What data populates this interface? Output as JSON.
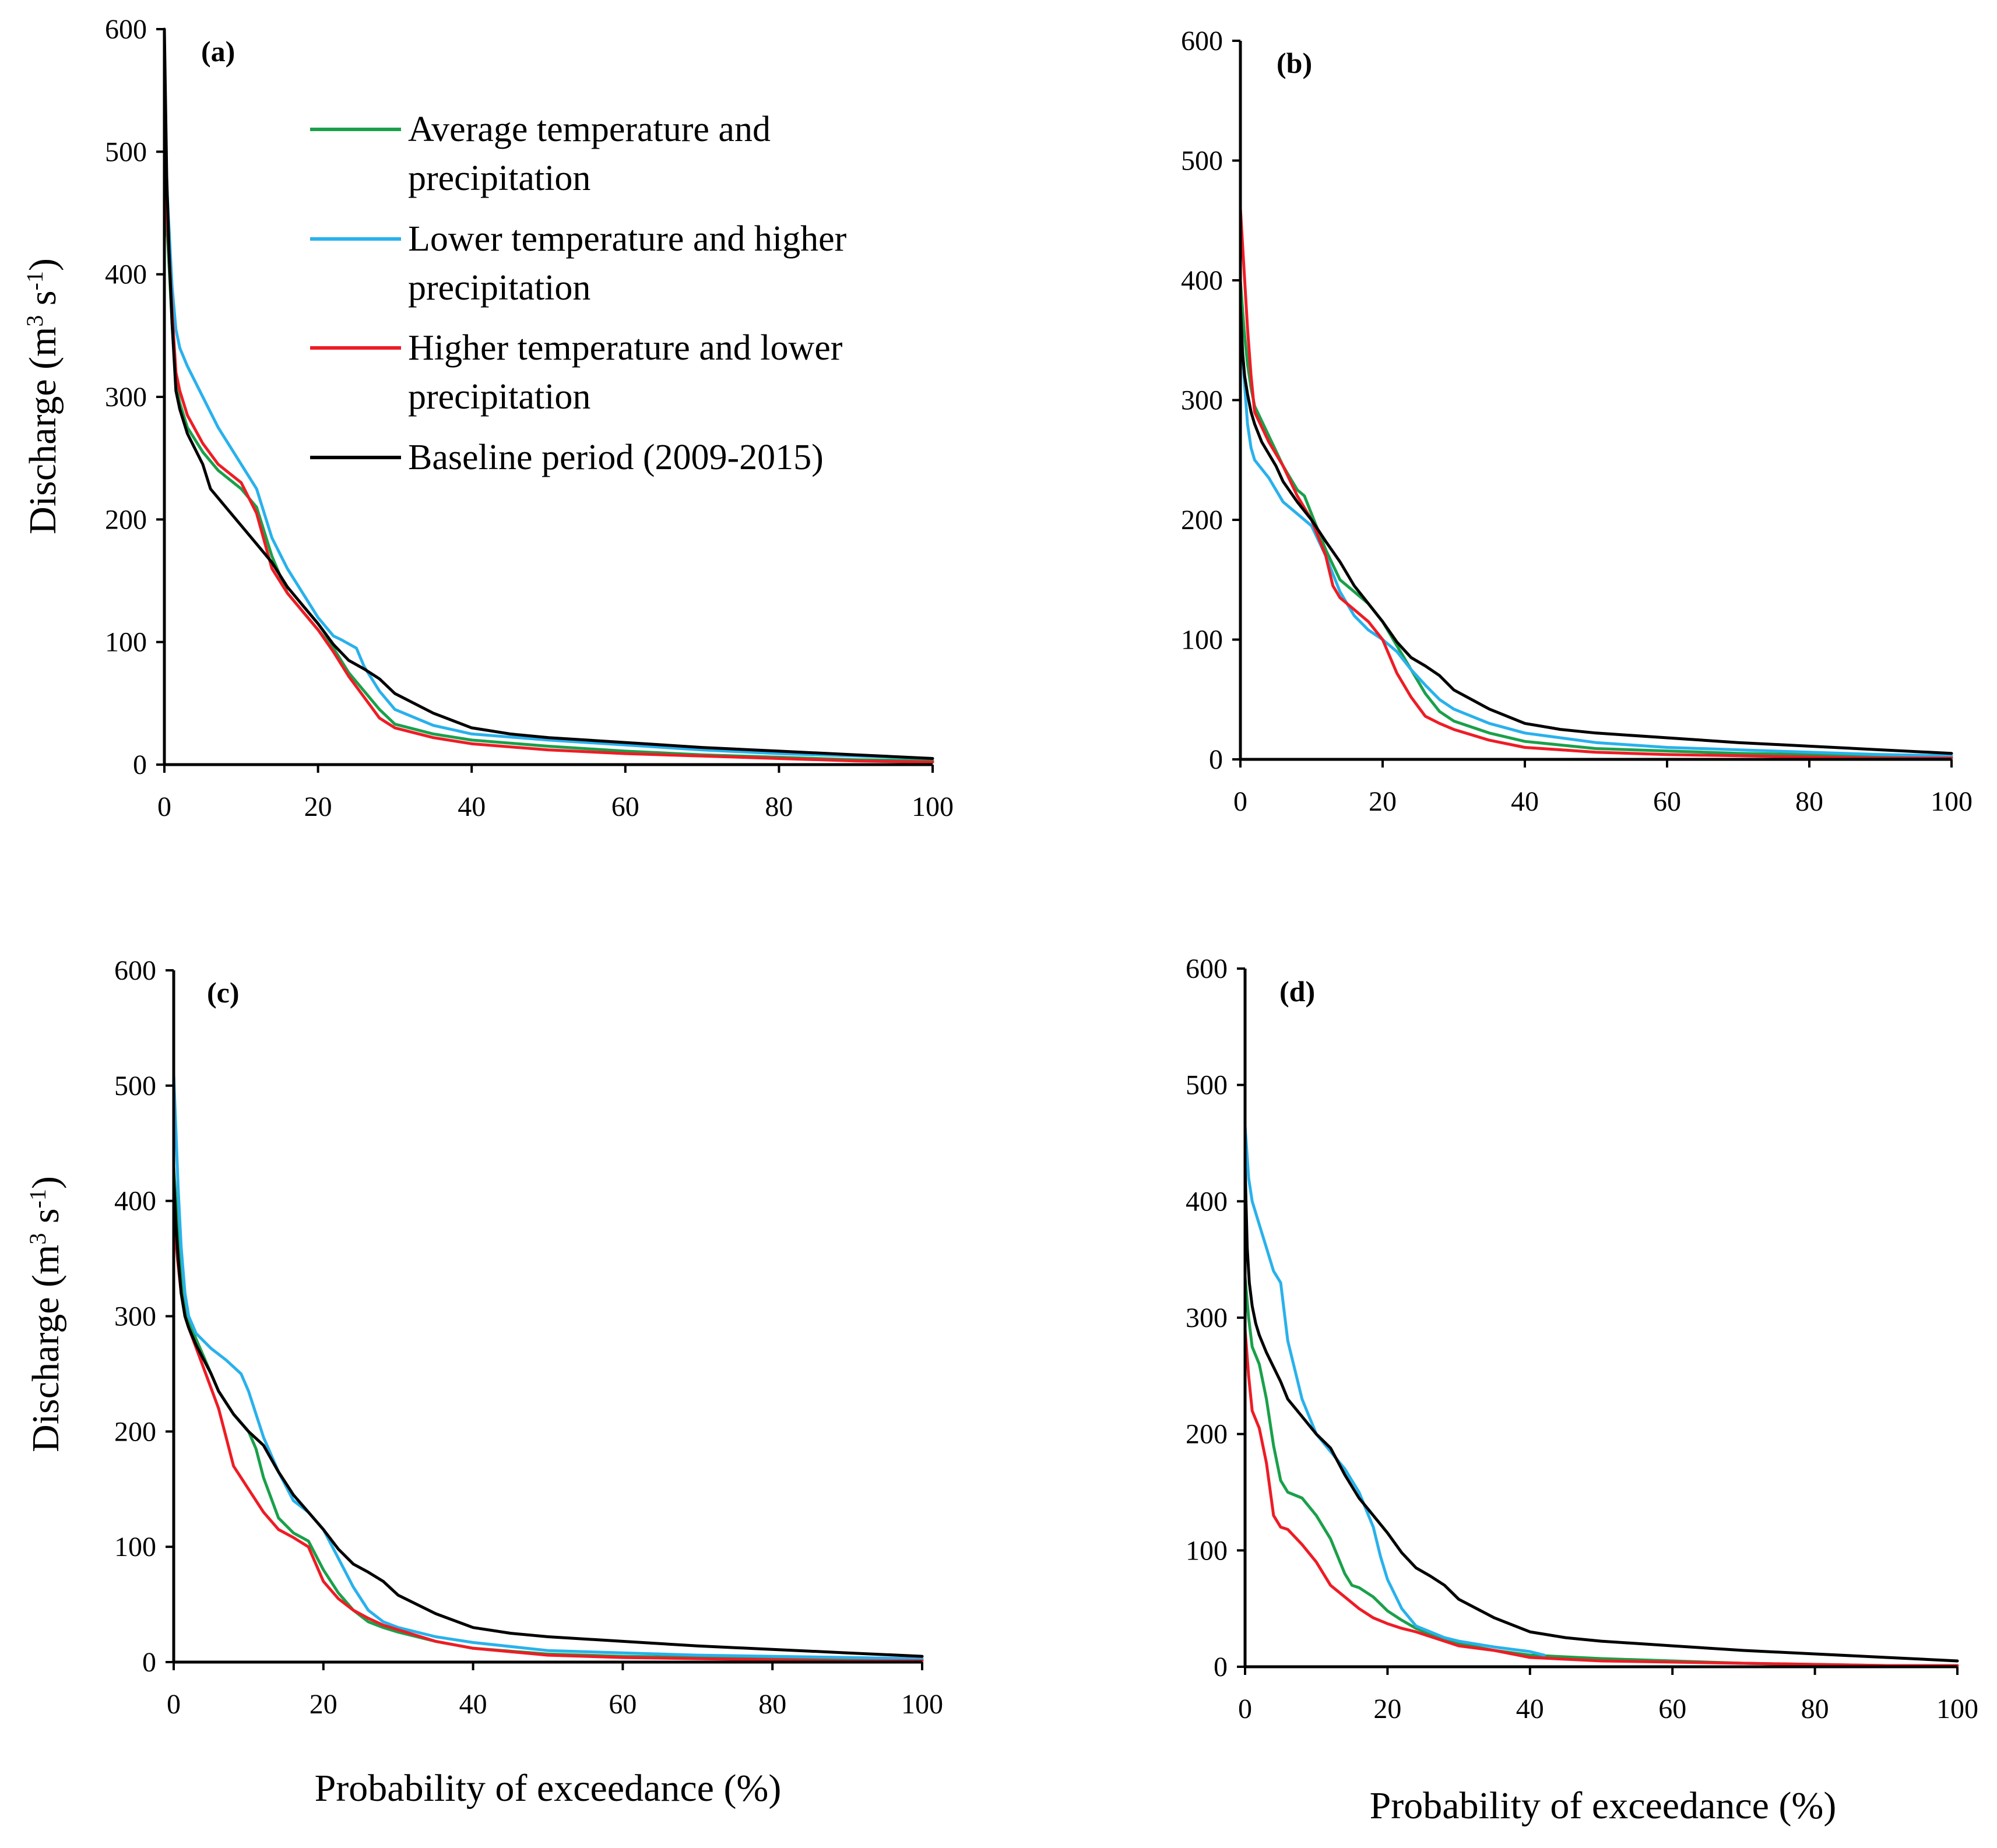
{
  "figure": {
    "x_axis_title": "Probability of exceedance  (%)",
    "y_axis_title_prefix": "Discharge (m",
    "y_axis_title_sup1": "3",
    "y_axis_title_mid": " s",
    "y_axis_title_sup2": "-1",
    "y_axis_title_suffix": ")"
  },
  "legend": [
    {
      "line1": "Average temperature and",
      "line2": "precipitation",
      "color": "#1aa04a"
    },
    {
      "line1": "Lower temperature and higher",
      "line2": "precipitation",
      "color": "#29b1ec"
    },
    {
      "line1": "Higher temperature and lower",
      "line2": "precipitation",
      "color": "#ee1c25"
    },
    {
      "line1": "Baseline period (2009-2015)",
      "line2": "",
      "color": "#000000"
    }
  ],
  "chart_data": [
    {
      "type": "line",
      "panel": "(a)",
      "xlabel": "",
      "ylabel": "Discharge (m3 s-1)",
      "xlim": [
        0,
        100
      ],
      "ylim": [
        0,
        600
      ],
      "xticks": [
        0,
        20,
        40,
        60,
        80,
        100
      ],
      "yticks": [
        0,
        100,
        200,
        300,
        400,
        500,
        600
      ],
      "series": [
        {
          "name": "Average temperature and precipitation",
          "color": "#1aa04a",
          "x": [
            0,
            0.5,
            1,
            1.5,
            2,
            3,
            5,
            7,
            10,
            12,
            14,
            16,
            18,
            20,
            22,
            24,
            26,
            28,
            30,
            35,
            40,
            50,
            60,
            70,
            80,
            90,
            100
          ],
          "y": [
            470,
            420,
            360,
            310,
            295,
            275,
            255,
            240,
            225,
            210,
            170,
            140,
            125,
            110,
            95,
            75,
            60,
            45,
            33,
            25,
            20,
            15,
            11,
            8,
            6,
            4,
            3
          ]
        },
        {
          "name": "Lower temperature and higher precipitation",
          "color": "#29b1ec",
          "x": [
            0,
            0.5,
            1,
            1.5,
            2,
            3,
            5,
            7,
            10,
            12,
            14,
            16,
            18,
            20,
            22,
            23,
            25,
            26,
            28,
            30,
            35,
            40,
            50,
            60,
            70,
            80,
            90,
            100
          ],
          "y": [
            510,
            450,
            390,
            355,
            340,
            325,
            300,
            275,
            245,
            225,
            185,
            160,
            140,
            120,
            105,
            102,
            95,
            80,
            60,
            45,
            32,
            25,
            20,
            16,
            12,
            9,
            7,
            5
          ]
        },
        {
          "name": "Higher temperature and lower precipitation",
          "color": "#ee1c25",
          "x": [
            0,
            0.5,
            1,
            1.5,
            2,
            3,
            5,
            7,
            10,
            12,
            14,
            16,
            18,
            20,
            22,
            24,
            26,
            28,
            30,
            35,
            40,
            50,
            60,
            70,
            80,
            90,
            100
          ],
          "y": [
            490,
            430,
            370,
            320,
            305,
            285,
            262,
            245,
            230,
            205,
            160,
            140,
            125,
            110,
            92,
            72,
            55,
            38,
            30,
            22,
            17,
            12,
            9,
            7,
            5,
            3,
            2
          ]
        },
        {
          "name": "Baseline period (2009-2015)",
          "color": "#000000",
          "x": [
            0,
            0.3,
            0.6,
            1,
            1.5,
            2,
            3,
            5,
            6,
            8,
            10,
            12,
            14,
            16,
            18,
            20,
            22,
            24,
            26,
            28,
            30,
            35,
            40,
            45,
            50,
            60,
            70,
            80,
            90,
            100
          ],
          "y": [
            600,
            480,
            420,
            360,
            305,
            290,
            270,
            245,
            225,
            210,
            195,
            180,
            165,
            145,
            130,
            115,
            98,
            85,
            78,
            70,
            58,
            42,
            30,
            25,
            22,
            18,
            14,
            11,
            8,
            5
          ]
        }
      ]
    },
    {
      "type": "line",
      "panel": "(b)",
      "xlabel": "",
      "ylabel": "",
      "xlim": [
        0,
        100
      ],
      "ylim": [
        0,
        600
      ],
      "xticks": [
        0,
        20,
        40,
        60,
        80,
        100
      ],
      "yticks": [
        0,
        100,
        200,
        300,
        400,
        500,
        600
      ],
      "series": [
        {
          "name": "Average temperature and precipitation",
          "color": "#1aa04a",
          "x": [
            0,
            0.5,
            1,
            1.5,
            2,
            4,
            6,
            8,
            9,
            10,
            12,
            14,
            16,
            18,
            20,
            22,
            24,
            26,
            28,
            30,
            35,
            40,
            50,
            60,
            70,
            80,
            90,
            100
          ],
          "y": [
            400,
            360,
            330,
            310,
            295,
            270,
            245,
            225,
            220,
            205,
            175,
            150,
            140,
            130,
            115,
            95,
            75,
            55,
            40,
            32,
            22,
            15,
            9,
            7,
            5,
            4,
            3,
            2
          ]
        },
        {
          "name": "Lower temperature and higher precipitation",
          "color": "#29b1ec",
          "x": [
            0,
            0.5,
            1,
            1.5,
            2,
            4,
            6,
            8,
            10,
            12,
            14,
            16,
            18,
            20,
            22,
            24,
            26,
            28,
            30,
            35,
            40,
            50,
            60,
            70,
            80,
            90,
            100
          ],
          "y": [
            370,
            320,
            280,
            260,
            250,
            235,
            215,
            205,
            195,
            170,
            140,
            120,
            108,
            100,
            90,
            75,
            62,
            50,
            42,
            30,
            22,
            14,
            10,
            8,
            6,
            4,
            3
          ]
        },
        {
          "name": "Higher temperature and lower precipitation",
          "color": "#ee1c25",
          "x": [
            0,
            0.5,
            1,
            1.5,
            2,
            4,
            6,
            8,
            10,
            12,
            13,
            14,
            16,
            18,
            20,
            22,
            24,
            26,
            28,
            30,
            35,
            40,
            50,
            60,
            70,
            80,
            90,
            100
          ],
          "y": [
            460,
            410,
            360,
            320,
            290,
            265,
            245,
            220,
            200,
            170,
            145,
            135,
            125,
            115,
            100,
            72,
            52,
            36,
            30,
            25,
            16,
            10,
            6,
            4,
            3,
            2,
            1,
            1
          ]
        },
        {
          "name": "Baseline period (2009-2015)",
          "color": "#000000",
          "x": [
            0,
            0.3,
            0.6,
            1,
            1.5,
            2,
            3,
            5,
            6,
            8,
            10,
            12,
            14,
            16,
            18,
            20,
            22,
            24,
            26,
            28,
            30,
            35,
            40,
            45,
            50,
            60,
            70,
            80,
            90,
            100
          ],
          "y": [
            380,
            340,
            320,
            305,
            290,
            280,
            265,
            245,
            232,
            215,
            200,
            182,
            165,
            145,
            130,
            115,
            98,
            85,
            78,
            70,
            58,
            42,
            30,
            25,
            22,
            18,
            14,
            11,
            8,
            5
          ]
        }
      ]
    },
    {
      "type": "line",
      "panel": "(c)",
      "xlabel": "Probability of exceedance  (%)",
      "ylabel": "Discharge (m3 s-1)",
      "xlim": [
        0,
        100
      ],
      "ylim": [
        0,
        600
      ],
      "xticks": [
        0,
        20,
        40,
        60,
        80,
        100
      ],
      "yticks": [
        0,
        100,
        200,
        300,
        400,
        500,
        600
      ],
      "series": [
        {
          "name": "Average temperature and precipitation",
          "color": "#1aa04a",
          "x": [
            0,
            0.5,
            1,
            1.5,
            2,
            4,
            6,
            8,
            10,
            11,
            12,
            14,
            16,
            18,
            20,
            22,
            24,
            26,
            28,
            30,
            35,
            40,
            50,
            60,
            70,
            80,
            90,
            100
          ],
          "y": [
            430,
            380,
            340,
            310,
            295,
            265,
            235,
            215,
            200,
            185,
            160,
            125,
            112,
            105,
            80,
            60,
            45,
            35,
            30,
            26,
            18,
            12,
            7,
            5,
            4,
            3,
            2,
            2
          ]
        },
        {
          "name": "Lower temperature and higher precipitation",
          "color": "#29b1ec",
          "x": [
            0,
            0.3,
            0.6,
            1,
            1.5,
            2,
            3,
            5,
            7,
            9,
            10,
            12,
            14,
            16,
            18,
            20,
            22,
            24,
            26,
            28,
            30,
            35,
            40,
            50,
            60,
            70,
            80,
            90,
            100
          ],
          "y": [
            510,
            460,
            410,
            360,
            320,
            300,
            285,
            272,
            262,
            250,
            235,
            195,
            165,
            140,
            130,
            115,
            90,
            65,
            45,
            35,
            30,
            22,
            17,
            10,
            8,
            6,
            5,
            4,
            3
          ]
        },
        {
          "name": "Higher temperature and lower precipitation",
          "color": "#ee1c25",
          "x": [
            0,
            0.5,
            1,
            1.5,
            2,
            4,
            6,
            7,
            8,
            10,
            12,
            14,
            16,
            18,
            20,
            22,
            24,
            26,
            28,
            30,
            35,
            40,
            50,
            60,
            70,
            80,
            90,
            100
          ],
          "y": [
            390,
            350,
            320,
            300,
            290,
            255,
            220,
            195,
            170,
            150,
            130,
            115,
            108,
            100,
            70,
            55,
            45,
            38,
            32,
            28,
            18,
            12,
            6,
            4,
            3,
            2,
            1,
            1
          ]
        },
        {
          "name": "Baseline period (2009-2015)",
          "color": "#000000",
          "x": [
            0,
            0.3,
            0.6,
            1,
            1.5,
            2,
            3,
            5,
            6,
            8,
            10,
            12,
            14,
            16,
            18,
            20,
            22,
            24,
            26,
            28,
            30,
            35,
            40,
            45,
            50,
            60,
            70,
            80,
            90,
            100
          ],
          "y": [
            420,
            380,
            350,
            320,
            300,
            290,
            275,
            250,
            235,
            215,
            200,
            188,
            165,
            145,
            130,
            115,
            98,
            85,
            78,
            70,
            58,
            42,
            30,
            25,
            22,
            18,
            14,
            11,
            8,
            5
          ]
        }
      ]
    },
    {
      "type": "line",
      "panel": "(d)",
      "xlabel": "Probability of exceedance  (%)",
      "ylabel": "",
      "xlim": [
        0,
        100
      ],
      "ylim": [
        0,
        600
      ],
      "xticks": [
        0,
        20,
        40,
        60,
        80,
        100
      ],
      "yticks": [
        0,
        100,
        200,
        300,
        400,
        500,
        600
      ],
      "series": [
        {
          "name": "Average temperature and precipitation",
          "color": "#1aa04a",
          "x": [
            0,
            0.5,
            1,
            2,
            3,
            4,
            5,
            6,
            8,
            10,
            12,
            14,
            15,
            16,
            18,
            20,
            22,
            24,
            26,
            28,
            30,
            35,
            40,
            50,
            60,
            70,
            80,
            90,
            100
          ],
          "y": [
            335,
            300,
            275,
            260,
            230,
            190,
            160,
            150,
            145,
            130,
            110,
            80,
            70,
            68,
            60,
            48,
            40,
            33,
            28,
            24,
            20,
            14,
            10,
            7,
            5,
            3,
            2,
            1,
            1
          ]
        },
        {
          "name": "Lower temperature and higher precipitation",
          "color": "#29b1ec",
          "x": [
            0,
            0.5,
            1,
            2,
            3,
            4,
            5,
            6,
            8,
            10,
            12,
            14,
            16,
            18,
            19,
            20,
            22,
            24,
            26,
            28,
            30,
            35,
            40,
            42
          ],
          "y": [
            465,
            420,
            400,
            380,
            360,
            340,
            330,
            280,
            230,
            200,
            185,
            170,
            150,
            120,
            95,
            75,
            50,
            35,
            30,
            25,
            22,
            17,
            13,
            10
          ]
        },
        {
          "name": "Higher temperature and lower precipitation",
          "color": "#ee1c25",
          "x": [
            0,
            0.5,
            1,
            2,
            3,
            4,
            5,
            6,
            8,
            10,
            12,
            14,
            16,
            18,
            20,
            22,
            24,
            26,
            28,
            30,
            35,
            40,
            50,
            60,
            70,
            80,
            90,
            100
          ],
          "y": [
            290,
            250,
            220,
            205,
            175,
            130,
            120,
            118,
            105,
            90,
            70,
            60,
            50,
            42,
            37,
            33,
            30,
            26,
            22,
            18,
            14,
            8,
            5,
            4,
            3,
            2,
            1,
            1
          ]
        },
        {
          "name": "Baseline period (2009-2015)",
          "color": "#000000",
          "x": [
            0,
            0.3,
            0.6,
            1,
            1.5,
            2,
            3,
            5,
            6,
            8,
            10,
            12,
            14,
            16,
            18,
            20,
            22,
            24,
            26,
            28,
            30,
            35,
            40,
            45,
            50,
            60,
            70,
            80,
            90,
            100
          ],
          "y": [
            430,
            360,
            330,
            310,
            295,
            285,
            270,
            245,
            230,
            215,
            200,
            188,
            165,
            145,
            130,
            115,
            98,
            85,
            78,
            70,
            58,
            42,
            30,
            25,
            22,
            18,
            14,
            11,
            8,
            5
          ]
        }
      ]
    }
  ]
}
